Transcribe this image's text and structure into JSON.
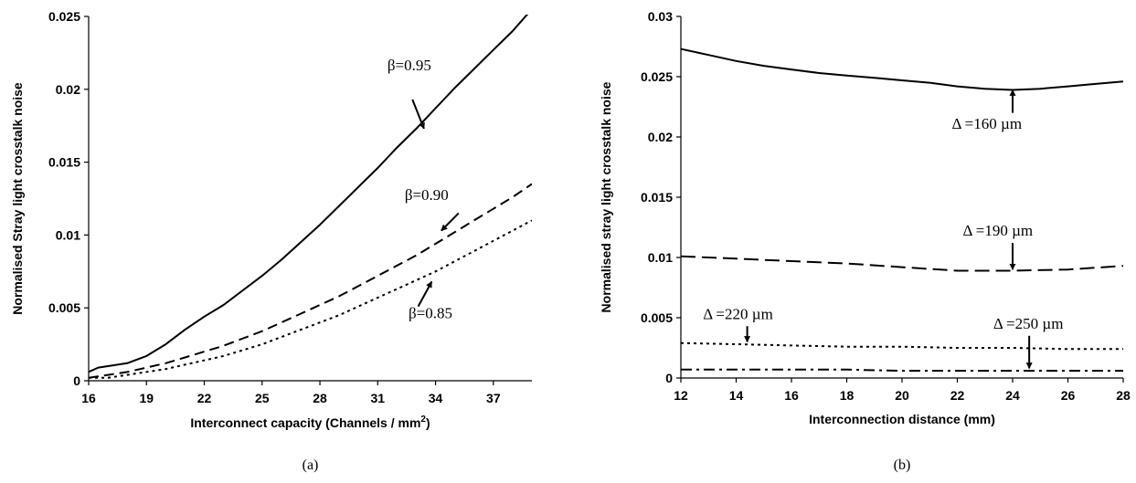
{
  "chart_data": [
    {
      "type": "line",
      "panel_label": "(a)",
      "xlabel": "Interconnect capacity (Channels / mm",
      "xlabel_sup": "2",
      "xlabel_end": ")",
      "ylabel": "Normalised Stray light crosstalk noise",
      "xlim": [
        16,
        39
      ],
      "ylim": [
        0,
        0.025
      ],
      "xticks": [
        16,
        19,
        22,
        25,
        28,
        31,
        34,
        37
      ],
      "yticks": [
        0,
        0.005,
        0.01,
        0.015,
        0.02,
        0.025
      ],
      "ytick_labels": [
        "0",
        "0.005",
        "0.01",
        "0.015",
        "0.02",
        "0.025"
      ],
      "grid": false,
      "series": [
        {
          "name": "β=0.95",
          "dash": "solid",
          "x": [
            16,
            16.5,
            17,
            18,
            19,
            20,
            21,
            22,
            23,
            24,
            25,
            26,
            27,
            28,
            29,
            30,
            31,
            32,
            33,
            34,
            35,
            36,
            37,
            38,
            39
          ],
          "y": [
            0.0006,
            0.0009,
            0.001,
            0.0012,
            0.0017,
            0.0025,
            0.0035,
            0.0044,
            0.0052,
            0.0062,
            0.0072,
            0.0083,
            0.0095,
            0.0107,
            0.012,
            0.0133,
            0.0146,
            0.016,
            0.0173,
            0.0187,
            0.0201,
            0.0214,
            0.0227,
            0.024,
            0.0255
          ]
        },
        {
          "name": "β=0.90",
          "dash": "dashed",
          "x": [
            16,
            17,
            18,
            19,
            20,
            21,
            22,
            23,
            24,
            25,
            26,
            27,
            28,
            29,
            30,
            31,
            32,
            33,
            34,
            35,
            36,
            37,
            38,
            39
          ],
          "y": [
            0.0002,
            0.0004,
            0.0006,
            0.0009,
            0.0012,
            0.0016,
            0.002,
            0.0024,
            0.0029,
            0.0034,
            0.004,
            0.0046,
            0.0052,
            0.0058,
            0.0065,
            0.0072,
            0.0079,
            0.0086,
            0.0094,
            0.0102,
            0.011,
            0.0118,
            0.0126,
            0.0135
          ]
        },
        {
          "name": "β=0.85",
          "dash": "dotted",
          "x": [
            16,
            17,
            18,
            19,
            20,
            21,
            22,
            23,
            24,
            25,
            26,
            27,
            28,
            29,
            30,
            31,
            32,
            33,
            34,
            35,
            36,
            37,
            38,
            39
          ],
          "y": [
            0.0002,
            0.0002,
            0.0004,
            0.0006,
            0.0008,
            0.0011,
            0.0014,
            0.0017,
            0.0021,
            0.0025,
            0.003,
            0.0035,
            0.004,
            0.0045,
            0.0051,
            0.0057,
            0.0063,
            0.0069,
            0.0075,
            0.0082,
            0.0089,
            0.0096,
            0.0103,
            0.011
          ]
        }
      ],
      "annotations": [
        {
          "text": "β=0.95",
          "text_at": [
            31.5,
            0.0213
          ],
          "arrow_from": [
            32.8,
            0.0193
          ],
          "arrow_to": [
            33.4,
            0.0173
          ]
        },
        {
          "text": "β=0.90",
          "text_at": [
            32.4,
            0.0124
          ],
          "arrow_from": [
            35.2,
            0.0115
          ],
          "arrow_to": [
            34.3,
            0.0103
          ]
        },
        {
          "text": "β=0.85",
          "text_at": [
            32.6,
            0.0043
          ],
          "arrow_from": [
            33.1,
            0.0051
          ],
          "arrow_to": [
            33.8,
            0.0068
          ]
        }
      ]
    },
    {
      "type": "line",
      "panel_label": "(b)",
      "xlabel": "Interconnection distance (mm)",
      "ylabel": "Normalised stray light crosstalk noise",
      "xlim": [
        12,
        28
      ],
      "ylim": [
        0,
        0.03
      ],
      "xticks": [
        12,
        14,
        16,
        18,
        20,
        22,
        24,
        26,
        28
      ],
      "yticks": [
        0,
        0.005,
        0.01,
        0.015,
        0.02,
        0.025,
        0.03
      ],
      "ytick_labels": [
        "0",
        "0.005",
        "0.01",
        "0.015",
        "0.02",
        "0.025",
        "0.03"
      ],
      "grid": false,
      "series": [
        {
          "name": "Δ =160 µm",
          "dash": "solid",
          "x": [
            12,
            13,
            14,
            15,
            16,
            17,
            18,
            19,
            20,
            21,
            22,
            23,
            24,
            25,
            26,
            27,
            28
          ],
          "y": [
            0.0273,
            0.0268,
            0.0263,
            0.0259,
            0.0256,
            0.0253,
            0.0251,
            0.0249,
            0.0247,
            0.0245,
            0.0242,
            0.024,
            0.0239,
            0.024,
            0.0242,
            0.0244,
            0.0246
          ]
        },
        {
          "name": "Δ =190 µm",
          "dash": "longdash",
          "x": [
            12,
            14,
            16,
            18,
            20,
            22,
            24,
            26,
            28
          ],
          "y": [
            0.0101,
            0.0099,
            0.0097,
            0.0095,
            0.0092,
            0.0089,
            0.0089,
            0.009,
            0.0093
          ]
        },
        {
          "name": "Δ =220 µm",
          "dash": "dotted",
          "x": [
            12,
            14,
            16,
            18,
            20,
            22,
            24,
            26,
            28
          ],
          "y": [
            0.0029,
            0.0028,
            0.0027,
            0.0026,
            0.0026,
            0.0025,
            0.0025,
            0.0024,
            0.0024
          ]
        },
        {
          "name": "Δ =250 µm",
          "dash": "dashdot",
          "x": [
            12,
            14,
            16,
            18,
            20,
            22,
            24,
            26,
            28
          ],
          "y": [
            0.0007,
            0.0007,
            0.0007,
            0.0007,
            0.0006,
            0.0006,
            0.0006,
            0.0006,
            0.0006
          ]
        }
      ],
      "annotations": [
        {
          "text": "Δ =160 µm",
          "text_at": [
            21.8,
            0.0207
          ],
          "arrow_from": [
            24,
            0.022
          ],
          "arrow_to": [
            24,
            0.0239
          ]
        },
        {
          "text": "Δ =190 µm",
          "text_at": [
            22.2,
            0.0118
          ],
          "arrow_from": [
            24,
            0.0112
          ],
          "arrow_to": [
            24,
            0.009
          ]
        },
        {
          "text": "Δ =220 µm",
          "text_at": [
            12.8,
            0.0049
          ],
          "arrow_from": [
            14.4,
            0.0043
          ],
          "arrow_to": [
            14.4,
            0.003
          ]
        },
        {
          "text": "Δ =250 µm",
          "text_at": [
            23.3,
            0.0041
          ],
          "arrow_from": [
            24.6,
            0.0035
          ],
          "arrow_to": [
            24.6,
            0.0008
          ]
        }
      ]
    }
  ]
}
